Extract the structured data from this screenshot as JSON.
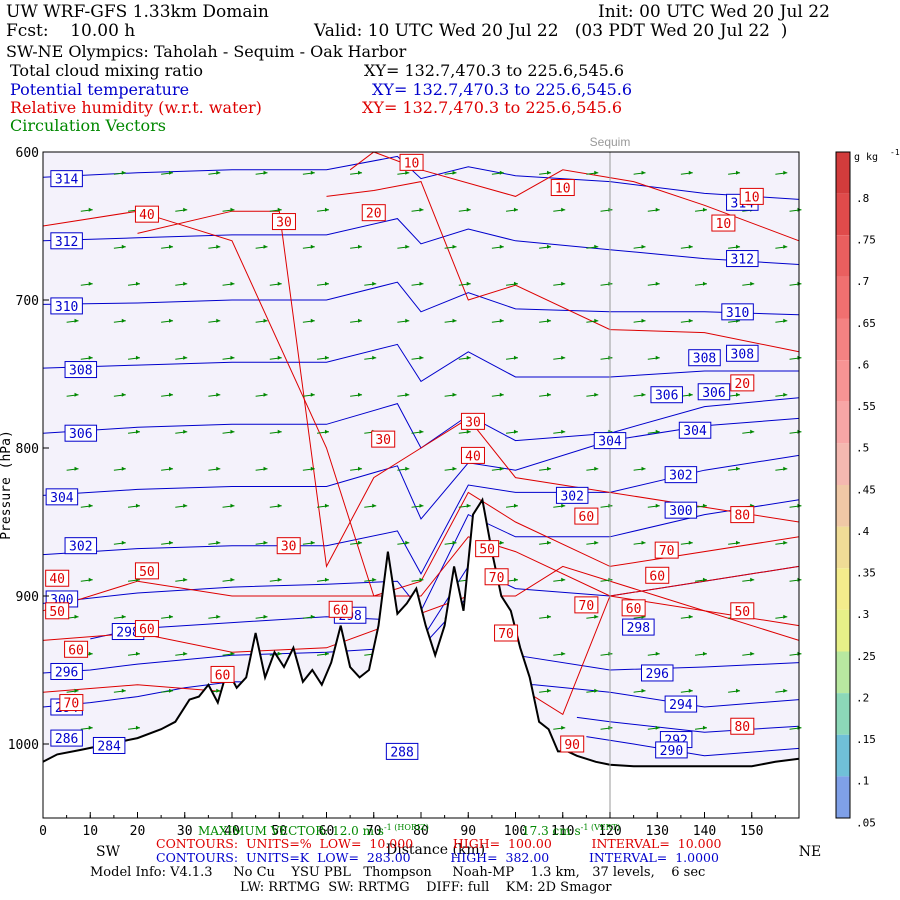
{
  "header": {
    "model_title": "UW WRF-GFS 1.33km Domain",
    "init": "Init: 00 UTC Wed 20 Jul 22",
    "fcst": "Fcst:    10.00 h",
    "valid": "Valid: 10 UTC Wed 20 Jul 22   (03 PDT Wed 20 Jul 22  )",
    "cross_section": "SW-NE Olympics: Taholah - Sequim - Oak Harbor",
    "field1": "Total cloud mixing ratio",
    "field1_xy": "XY= 132.7,470.3 to 225.6,545.6",
    "field2": "Potential temperature",
    "field2_xy": "XY= 132.7,470.3 to 225.6,545.6",
    "field3": "Relative humidity (w.r.t. water)",
    "field3_xy": "XY= 132.7,470.3 to 225.6,545.6",
    "field4": "Circulation Vectors"
  },
  "colors": {
    "theta": "#0000cc",
    "rh": "#dd0000",
    "vectors": "#008800",
    "terrain": "#000000",
    "plot_bg": "#f4f2fb"
  },
  "chart_data": {
    "type": "line",
    "xlabel": "Distance (km)",
    "ylabel": "Pressure (hPa)",
    "xlim": [
      0,
      160
    ],
    "ylim": [
      1050,
      600
    ],
    "x_ticks": [
      0,
      10,
      20,
      30,
      40,
      50,
      60,
      70,
      80,
      90,
      100,
      110,
      120,
      130,
      140,
      150
    ],
    "y_ticks": [
      600,
      700,
      800,
      900,
      1000
    ],
    "sequim_label": "Sequim",
    "sequim_x": 120,
    "direction_left": "SW",
    "direction_right": "NE",
    "terrain": {
      "x": [
        0,
        3,
        8,
        14,
        20,
        25,
        28,
        31,
        33,
        35,
        37,
        39,
        41,
        43,
        45,
        47,
        49,
        51,
        53,
        55,
        57,
        59,
        61,
        63,
        65,
        67,
        69,
        71,
        73,
        75,
        77,
        79,
        81,
        83,
        85,
        87,
        89,
        91,
        93,
        95,
        97,
        99,
        101,
        103,
        105,
        107,
        109,
        111,
        113,
        115,
        117,
        120,
        125,
        130,
        135,
        140,
        145,
        150,
        155,
        160
      ],
      "p": [
        1012,
        1007,
        1004,
        1000,
        996,
        990,
        985,
        970,
        968,
        960,
        972,
        950,
        962,
        955,
        925,
        955,
        938,
        948,
        935,
        958,
        950,
        960,
        945,
        920,
        948,
        955,
        950,
        920,
        870,
        912,
        905,
        895,
        920,
        940,
        920,
        880,
        910,
        845,
        835,
        870,
        900,
        910,
        935,
        955,
        985,
        990,
        1005,
        1005,
        1008,
        1010,
        1012,
        1014,
        1015,
        1015,
        1015,
        1015,
        1015,
        1015,
        1012,
        1010
      ]
    },
    "theta_contours": [
      {
        "label": "314",
        "x": [
          0,
          20,
          40,
          60,
          75,
          80,
          90,
          100,
          120,
          140,
          160
        ],
        "p": [
          617,
          614,
          612,
          612,
          603,
          618,
          610,
          616,
          620,
          628,
          632
        ],
        "labels_at": [
          [
            5,
            618
          ],
          [
            148,
            634
          ]
        ]
      },
      {
        "label": "312",
        "x": [
          0,
          20,
          40,
          60,
          75,
          80,
          90,
          100,
          120,
          140,
          160
        ],
        "p": [
          660,
          658,
          656,
          656,
          645,
          662,
          652,
          660,
          666,
          672,
          676
        ],
        "labels_at": [
          [
            5,
            660
          ],
          [
            148,
            672
          ]
        ]
      },
      {
        "label": "310",
        "x": [
          0,
          20,
          40,
          60,
          75,
          80,
          90,
          100,
          120,
          140,
          160
        ],
        "p": [
          703,
          702,
          700,
          700,
          688,
          708,
          695,
          706,
          708,
          708,
          710
        ],
        "labels_at": [
          [
            5,
            704
          ],
          [
            147,
            708
          ]
        ]
      },
      {
        "label": "308",
        "x": [
          0,
          20,
          40,
          60,
          75,
          80,
          90,
          100,
          120,
          140,
          160
        ],
        "p": [
          746,
          744,
          742,
          742,
          730,
          755,
          735,
          752,
          752,
          748,
          748
        ],
        "labels_at": [
          [
            8,
            747
          ],
          [
            140,
            739
          ],
          [
            148,
            736
          ]
        ]
      },
      {
        "label": "306",
        "x": [
          0,
          20,
          40,
          60,
          75,
          80,
          90,
          100,
          120,
          140,
          160
        ],
        "p": [
          790,
          786,
          784,
          784,
          770,
          800,
          778,
          795,
          790,
          772,
          766
        ],
        "labels_at": [
          [
            8,
            790
          ],
          [
            132,
            764
          ],
          [
            142,
            762
          ]
        ]
      },
      {
        "label": "304",
        "x": [
          0,
          20,
          40,
          60,
          75,
          80,
          90,
          100,
          120,
          140,
          160
        ],
        "p": [
          832,
          828,
          826,
          826,
          812,
          848,
          810,
          815,
          795,
          785,
          780
        ],
        "labels_at": [
          [
            4,
            833
          ],
          [
            120,
            795
          ],
          [
            138,
            788
          ]
        ]
      },
      {
        "label": "302",
        "x": [
          0,
          20,
          40,
          60,
          75,
          80,
          90,
          100,
          120,
          140,
          160
        ],
        "p": [
          872,
          868,
          866,
          866,
          856,
          885,
          825,
          830,
          830,
          815,
          805
        ],
        "labels_at": [
          [
            8,
            866
          ],
          [
            112,
            832
          ],
          [
            135,
            818
          ]
        ]
      },
      {
        "label": "300",
        "x": [
          0,
          20,
          40,
          60,
          75,
          80,
          90,
          100,
          120,
          140,
          160
        ],
        "p": [
          905,
          898,
          894,
          892,
          890,
          910,
          845,
          860,
          860,
          845,
          835
        ],
        "labels_at": [
          [
            4,
            902
          ],
          [
            135,
            842
          ]
        ]
      },
      {
        "label": "298",
        "x": [
          10,
          20,
          40,
          60,
          73,
          80,
          90,
          100,
          120,
          140,
          160
        ],
        "p": [
          929,
          922,
          918,
          914,
          916,
          930,
          880,
          895,
          900,
          890,
          880
        ],
        "labels_at": [
          [
            18,
            924
          ],
          [
            65,
            913
          ],
          [
            126,
            921
          ]
        ]
      },
      {
        "label": "296",
        "x": [
          0,
          10,
          20,
          40,
          60,
          70,
          80,
          90,
          100,
          120,
          140,
          160
        ],
        "p": [
          952,
          950,
          946,
          940,
          938,
          936,
          935,
          900,
          940,
          950,
          948,
          945
        ],
        "labels_at": [
          [
            5,
            951
          ],
          [
            130,
            952
          ]
        ]
      },
      {
        "label": "294",
        "x": [
          0,
          10,
          20,
          30,
          40,
          104,
          120,
          140,
          160
        ],
        "p": [
          975,
          972,
          968,
          962,
          958,
          960,
          965,
          975,
          970
        ],
        "labels_at": [
          [
            5,
            975
          ],
          [
            135,
            973
          ]
        ]
      },
      {
        "label": "292",
        "x": [
          113,
          120,
          140,
          160
        ],
        "p": [
          982,
          985,
          992,
          988
        ],
        "labels_at": [
          [
            134,
            997
          ]
        ]
      },
      {
        "label": "290",
        "x": [
          115,
          125,
          140,
          160
        ],
        "p": [
          995,
          1000,
          1008,
          1003
        ],
        "labels_at": [
          [
            133,
            1004
          ]
        ]
      },
      {
        "label": "288",
        "x": [],
        "p": [],
        "labels_at": [
          [
            76,
            1005
          ]
        ]
      },
      {
        "label": "286",
        "x": [],
        "p": [],
        "labels_at": [
          [
            5,
            996
          ]
        ]
      },
      {
        "label": "284",
        "x": [],
        "p": [],
        "labels_at": [
          [
            14,
            1001
          ]
        ]
      }
    ],
    "rh_contours": [
      {
        "label": "10",
        "x": [
          65,
          70,
          80,
          100,
          110,
          125,
          140,
          160
        ],
        "p": [
          612,
          600,
          612,
          630,
          612,
          620,
          636,
          660
        ],
        "labels_at": [
          [
            78,
            607
          ],
          [
            110,
            624
          ],
          [
            144,
            648
          ],
          [
            150,
            630
          ]
        ]
      },
      {
        "label": "20",
        "x": [
          60,
          70,
          80,
          90,
          100,
          120,
          140,
          160
        ],
        "p": [
          630,
          626,
          620,
          700,
          690,
          720,
          722,
          735
        ],
        "labels_at": [
          [
            70,
            641
          ],
          [
            148,
            756
          ]
        ]
      },
      {
        "label": "30",
        "x": [
          20,
          40,
          50,
          55,
          60,
          70,
          80,
          90,
          100,
          160
        ],
        "p": [
          655,
          640,
          640,
          760,
          880,
          820,
          800,
          780,
          820,
          850
        ],
        "labels_at": [
          [
            51,
            647
          ],
          [
            72,
            794
          ],
          [
            91,
            782
          ],
          [
            52,
            866
          ]
        ]
      },
      {
        "label": "40",
        "x": [
          0,
          20,
          40,
          60,
          70,
          80,
          90,
          100,
          120,
          160
        ],
        "p": [
          650,
          640,
          660,
          800,
          900,
          890,
          830,
          850,
          880,
          860
        ],
        "labels_at": [
          [
            22,
            642
          ],
          [
            3,
            888
          ],
          [
            91,
            805
          ]
        ]
      },
      {
        "label": "50",
        "x": [
          0,
          20,
          40,
          60,
          80,
          90,
          100,
          120,
          160
        ],
        "p": [
          910,
          890,
          900,
          900,
          900,
          860,
          870,
          900,
          920
        ],
        "labels_at": [
          [
            3,
            910
          ],
          [
            22,
            883
          ],
          [
            94,
            868
          ],
          [
            148,
            910
          ]
        ]
      },
      {
        "label": "60",
        "x": [
          0,
          20,
          40,
          60,
          90,
          100,
          110,
          130,
          160
        ],
        "p": [
          930,
          925,
          938,
          935,
          900,
          900,
          880,
          900,
          930
        ],
        "labels_at": [
          [
            22,
            922
          ],
          [
            63,
            909
          ],
          [
            38,
            953
          ],
          [
            7,
            936
          ],
          [
            115,
            846
          ],
          [
            125,
            908
          ],
          [
            130,
            886
          ]
        ]
      },
      {
        "label": "70",
        "x": [
          0,
          20,
          40,
          60,
          90,
          100,
          110,
          120,
          160
        ],
        "p": [
          965,
          960,
          965,
          960,
          950,
          960,
          980,
          900,
          880
        ],
        "labels_at": [
          [
            6,
            972
          ],
          [
            96,
            887
          ],
          [
            98,
            925
          ],
          [
            115,
            906
          ],
          [
            132,
            869
          ]
        ]
      },
      {
        "label": "80",
        "x": [],
        "p": [],
        "labels_at": [
          [
            148,
            845
          ],
          [
            148,
            988
          ]
        ]
      },
      {
        "label": "90",
        "x": [],
        "p": [],
        "labels_at": [
          [
            112,
            1000
          ]
        ]
      }
    ],
    "vector_field": {
      "rows_p": [
        615,
        640,
        665,
        690,
        715,
        740,
        765,
        790,
        815,
        840,
        865,
        890,
        915,
        940,
        965,
        990
      ],
      "cols_x": [
        5,
        15,
        25,
        35,
        45,
        55,
        65,
        75,
        85,
        95,
        105,
        115,
        125,
        135,
        145,
        155
      ]
    }
  },
  "footer": {
    "max_vector": "MAXIMUM VECTOR: 12.0 m s",
    "max_vector_unit_h": "-1 (HORIZ)",
    "max_vector_v": "17.3 cm s",
    "max_vector_unit_v": "-1 (VERT)",
    "xaxis_title": "Distance (km)",
    "contours_rh": "CONTOURS:  UNITS=%  LOW=  10.000          HIGH=  100.00          INTERVAL=  10.000",
    "contours_theta": "CONTOURS:  UNITS=K  LOW=  283.00          HIGH=  382.00          INTERVAL=  1.0000",
    "model_info": "Model Info: V4.1.3     No Cu    YSU PBL   Thompson     Noah-MP    1.3 km,   37 levels,    6 sec",
    "model_info2": "LW: RRTMG  SW: RRTMG    DIFF: full    KM: 2D Smagor"
  },
  "colorbar": {
    "unit": "g kg",
    "unit_exp": "-1",
    "labels": [
      ".8",
      ".75",
      ".7",
      ".65",
      ".6",
      ".55",
      ".5",
      ".45",
      ".4",
      ".35",
      ".3",
      ".25",
      ".2",
      ".15",
      ".1",
      ".05"
    ],
    "colors": [
      "#d23c3c",
      "#e04b4b",
      "#ea5f5f",
      "#f07070",
      "#f48282",
      "#f79494",
      "#f7a6a6",
      "#f4b8b0",
      "#f0c8a6",
      "#f0dc96",
      "#f4ec8c",
      "#e6f088",
      "#b8e8a0",
      "#8cd8b8",
      "#70c0d8",
      "#7fa0e8"
    ]
  }
}
